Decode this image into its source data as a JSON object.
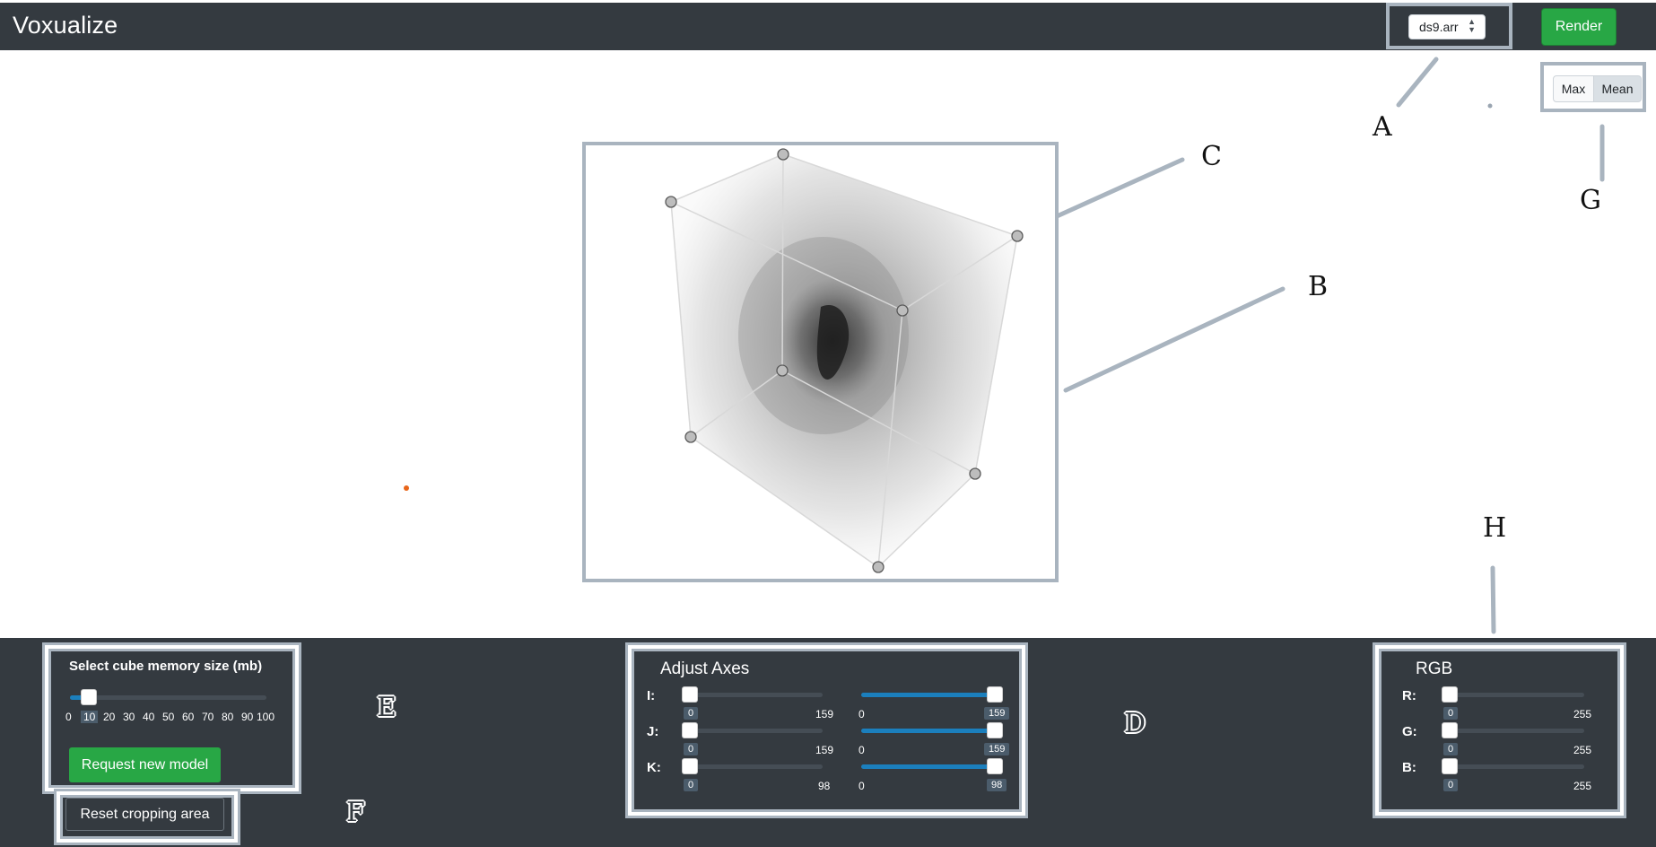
{
  "header": {
    "title": "Voxualize",
    "file_select": {
      "value": "ds9.arr",
      "caret_icon": "updown-caret-icon"
    },
    "render_label": "Render"
  },
  "projection_modes": {
    "options": [
      "Max",
      "Mean"
    ],
    "selected": "Mean"
  },
  "callouts": [
    "A",
    "B",
    "C",
    "D",
    "E",
    "F",
    "G",
    "H"
  ],
  "memory_panel": {
    "title": "Select cube memory size (mb)",
    "ticks": [
      "0",
      "10",
      "20",
      "30",
      "40",
      "50",
      "60",
      "70",
      "80",
      "90",
      "100"
    ],
    "value": 10,
    "request_label": "Request new model"
  },
  "reset_label": "Reset cropping area",
  "axes_panel": {
    "title": "Adjust Axes",
    "rows": [
      {
        "label": "I:",
        "min_value": "0",
        "min_max": "159",
        "max_min": "0",
        "max_value": "159"
      },
      {
        "label": "J:",
        "min_value": "0",
        "min_max": "159",
        "max_min": "0",
        "max_value": "159"
      },
      {
        "label": "K:",
        "min_value": "0",
        "min_max": "98",
        "max_min": "0",
        "max_value": "98"
      }
    ]
  },
  "rgb_panel": {
    "title": "RGB",
    "rows": [
      {
        "label": "R:",
        "value": "0",
        "max": "255"
      },
      {
        "label": "G:",
        "value": "0",
        "max": "255"
      },
      {
        "label": "B:",
        "value": "0",
        "max": "255"
      }
    ]
  },
  "colors": {
    "header_bg": "#343a40",
    "accent_green": "#28a745",
    "callout_gray": "#a9b4bf",
    "slider_blue": "#1b7fbd"
  }
}
